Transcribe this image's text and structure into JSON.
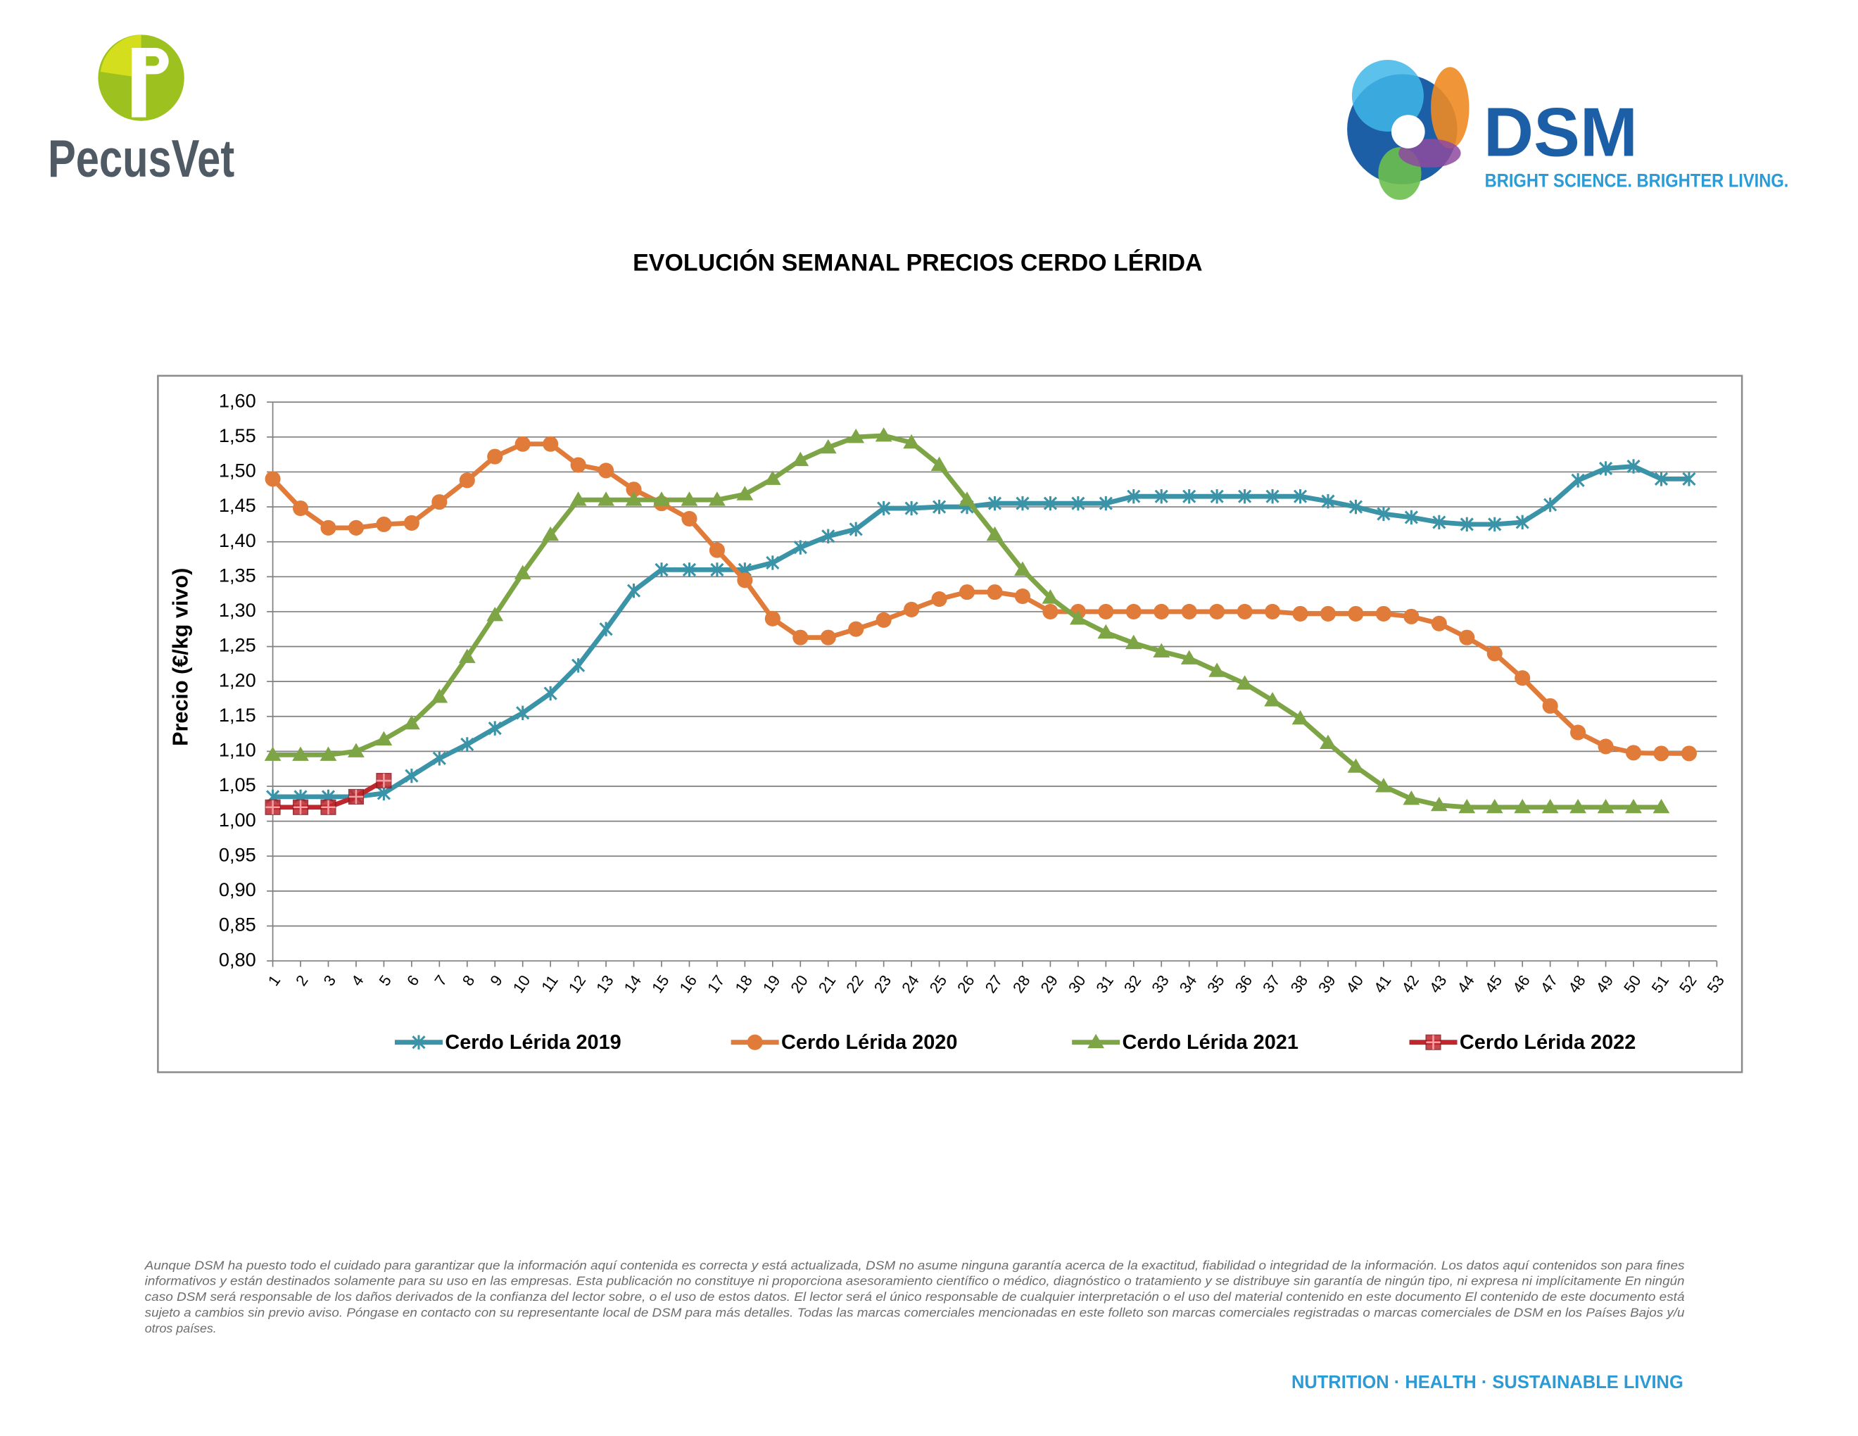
{
  "header": {
    "left_logo": "PecusVet",
    "right_logo": "DSM",
    "tagline": "BRIGHT SCIENCE. BRIGHTER LIVING."
  },
  "chart_data": {
    "type": "line",
    "title": "EVOLUCIÓN SEMANAL PRECIOS CERDO LÉRIDA",
    "y_label": "Precio (€/kg vivo)",
    "x": [
      1,
      2,
      3,
      4,
      5,
      6,
      7,
      8,
      9,
      10,
      11,
      12,
      13,
      14,
      15,
      16,
      17,
      18,
      19,
      20,
      21,
      22,
      23,
      24,
      25,
      26,
      27,
      28,
      29,
      30,
      31,
      32,
      33,
      34,
      35,
      36,
      37,
      38,
      39,
      40,
      41,
      42,
      43,
      44,
      45,
      46,
      47,
      48,
      49,
      50,
      51,
      52
    ],
    "xlim": [
      1,
      53
    ],
    "xticks": [
      1,
      2,
      3,
      4,
      5,
      6,
      7,
      8,
      9,
      10,
      11,
      12,
      13,
      14,
      15,
      16,
      17,
      18,
      19,
      20,
      21,
      22,
      23,
      24,
      25,
      26,
      27,
      28,
      29,
      30,
      31,
      32,
      33,
      34,
      35,
      36,
      37,
      38,
      39,
      40,
      41,
      42,
      43,
      44,
      45,
      46,
      47,
      48,
      49,
      50,
      51,
      52,
      53
    ],
    "ylim": [
      0.8,
      1.6
    ],
    "yticks": [
      {
        "value": 0.8,
        "label": "0,80"
      },
      {
        "value": 0.85,
        "label": "0,85"
      },
      {
        "value": 0.9,
        "label": "0,90"
      },
      {
        "value": 0.95,
        "label": "0,95"
      },
      {
        "value": 1.0,
        "label": "1,00"
      },
      {
        "value": 1.05,
        "label": "1,05"
      },
      {
        "value": 1.1,
        "label": "1,10"
      },
      {
        "value": 1.15,
        "label": "1,15"
      },
      {
        "value": 1.2,
        "label": "1,20"
      },
      {
        "value": 1.25,
        "label": "1,25"
      },
      {
        "value": 1.3,
        "label": "1,30"
      },
      {
        "value": 1.35,
        "label": "1,35"
      },
      {
        "value": 1.4,
        "label": "1,40"
      },
      {
        "value": 1.45,
        "label": "1,45"
      },
      {
        "value": 1.5,
        "label": "1,50"
      },
      {
        "value": 1.55,
        "label": "1,55"
      },
      {
        "value": 1.6,
        "label": "1,60"
      }
    ],
    "grid": true,
    "legend": "bottom",
    "series": [
      {
        "name": "Cerdo Lérida 2019",
        "color": "#3b93a8",
        "marker": "star",
        "values": [
          1.035,
          1.035,
          1.035,
          1.035,
          1.04,
          1.065,
          1.09,
          1.11,
          1.133,
          1.155,
          1.183,
          1.223,
          1.275,
          1.33,
          1.36,
          1.36,
          1.36,
          1.36,
          1.37,
          1.392,
          1.408,
          1.418,
          1.448,
          1.448,
          1.45,
          1.45,
          1.455,
          1.455,
          1.455,
          1.455,
          1.455,
          1.465,
          1.465,
          1.465,
          1.465,
          1.465,
          1.465,
          1.465,
          1.458,
          1.45,
          1.44,
          1.435,
          1.428,
          1.425,
          1.425,
          1.428,
          1.453,
          1.488,
          1.505,
          1.508,
          1.49,
          1.49
        ]
      },
      {
        "name": "Cerdo Lérida 2020",
        "color": "#e07b39",
        "marker": "circle",
        "values": [
          1.49,
          1.448,
          1.42,
          1.42,
          1.425,
          1.427,
          1.457,
          1.488,
          1.522,
          1.54,
          1.54,
          1.51,
          1.502,
          1.475,
          1.455,
          1.433,
          1.388,
          1.345,
          1.29,
          1.263,
          1.263,
          1.275,
          1.288,
          1.303,
          1.318,
          1.328,
          1.328,
          1.322,
          1.3,
          1.3,
          1.3,
          1.3,
          1.3,
          1.3,
          1.3,
          1.3,
          1.3,
          1.297,
          1.297,
          1.297,
          1.297,
          1.293,
          1.283,
          1.263,
          1.24,
          1.205,
          1.165,
          1.127,
          1.107,
          1.098,
          1.097,
          1.097
        ]
      },
      {
        "name": "Cerdo Lérida 2021",
        "color": "#7ea545",
        "marker": "triangle",
        "values": [
          1.095,
          1.095,
          1.095,
          1.1,
          1.117,
          1.14,
          1.178,
          1.235,
          1.295,
          1.355,
          1.41,
          1.46,
          1.46,
          1.46,
          1.46,
          1.46,
          1.46,
          1.468,
          1.49,
          1.517,
          1.535,
          1.55,
          1.552,
          1.542,
          1.51,
          1.46,
          1.41,
          1.36,
          1.32,
          1.29,
          1.27,
          1.255,
          1.243,
          1.233,
          1.215,
          1.197,
          1.173,
          1.147,
          1.112,
          1.078,
          1.05,
          1.032,
          1.023,
          1.02,
          1.02,
          1.02,
          1.02,
          1.02,
          1.02,
          1.02,
          1.02,
          null
        ]
      },
      {
        "name": "Cerdo Lérida 2022",
        "color": "#c0262d",
        "marker": "square",
        "values": [
          1.02,
          1.02,
          1.02,
          1.035,
          1.058,
          null,
          null,
          null,
          null,
          null,
          null,
          null,
          null,
          null,
          null,
          null,
          null,
          null,
          null,
          null,
          null,
          null,
          null,
          null,
          null,
          null,
          null,
          null,
          null,
          null,
          null,
          null,
          null,
          null,
          null,
          null,
          null,
          null,
          null,
          null,
          null,
          null,
          null,
          null,
          null,
          null,
          null,
          null,
          null,
          null,
          null,
          null
        ]
      }
    ]
  },
  "disclaimer": [
    "Aunque DSM ha puesto todo el cuidado para garantizar que la información aquí contenida es correcta y está actualizada, DSM no asume ninguna garantía acerca de la exactitud, fiabilidad o integridad de la información. Los datos aquí contenidos son para fines",
    "informativos y están destinados solamente para su uso en las empresas. Esta publicación no constituye ni proporciona asesoramiento científico o médico, diagnóstico o tratamiento y se distribuye sin garantía de ningún tipo, ni expresa ni implícitamente En ningún",
    "caso DSM será responsable de los daños derivados de la confianza del lector sobre, o el uso de estos datos. El lector será el único responsable de cualquier interpretación o el uso del material contenido en este documento El contenido de este documento está",
    "sujeto a cambios sin previo aviso. Póngase en contacto con su representante local de DSM para más detalles. Todas las marcas comerciales mencionadas en este folleto son marcas comerciales registradas o marcas comerciales de DSM en los Países Bajos y/u",
    "otros países."
  ],
  "footer": "NUTRITION · HEALTH · SUSTAINABLE LIVING"
}
